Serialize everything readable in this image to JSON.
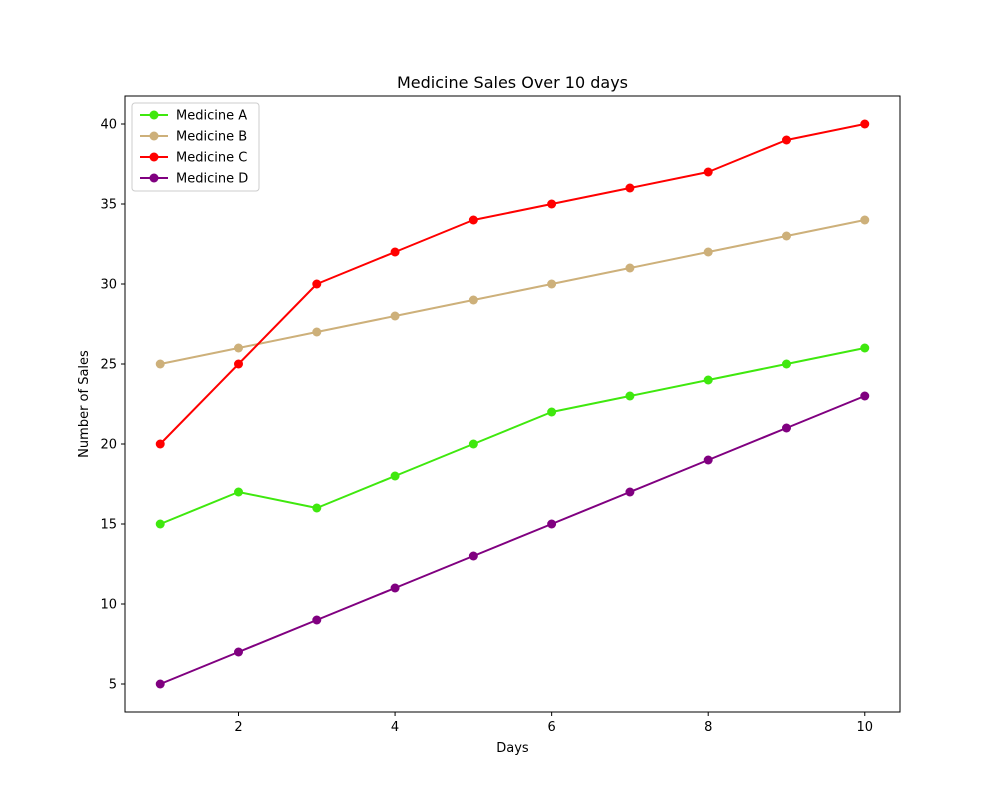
{
  "chart_data": {
    "type": "line",
    "title": "Medicine Sales Over 10 days",
    "xlabel": "Days",
    "ylabel": "Number of Sales",
    "x": [
      1,
      2,
      3,
      4,
      5,
      6,
      7,
      8,
      9,
      10
    ],
    "xlim": [
      0.55,
      10.45
    ],
    "ylim": [
      3.25,
      41.75
    ],
    "xticks": [
      2,
      4,
      6,
      8,
      10
    ],
    "yticks": [
      5,
      10,
      15,
      20,
      25,
      30,
      35,
      40
    ],
    "grid": false,
    "legend_position": "top-left",
    "series": [
      {
        "name": "Medicine A",
        "color": "#3fe80e",
        "values": [
          15,
          17,
          16,
          18,
          20,
          22,
          23,
          24,
          25,
          26
        ]
      },
      {
        "name": "Medicine B",
        "color": "#cdb07a",
        "values": [
          25,
          26,
          27,
          28,
          29,
          30,
          31,
          32,
          33,
          34
        ]
      },
      {
        "name": "Medicine C",
        "color": "#ff0000",
        "values": [
          20,
          25,
          30,
          32,
          34,
          35,
          36,
          37,
          39,
          40
        ]
      },
      {
        "name": "Medicine D",
        "color": "#800080",
        "values": [
          5,
          7,
          9,
          11,
          13,
          15,
          17,
          19,
          21,
          23
        ]
      }
    ]
  }
}
